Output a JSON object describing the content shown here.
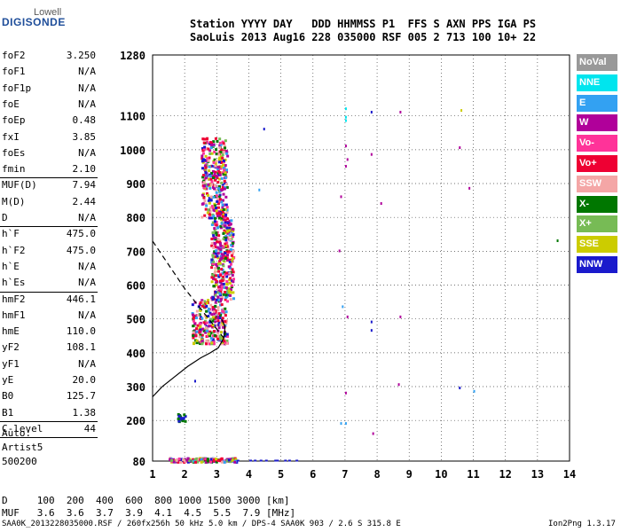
{
  "logo": {
    "top": "Lowell",
    "main": "DIGISONDE"
  },
  "header": {
    "line1": "Station YYYY DAY   DDD HHMMSS P1  FFS S AXN PPS IGA PS",
    "line2": "SaoLuis 2013 Aug16 228 035000 RSF 005 2 713 100 10+ 22"
  },
  "params": [
    {
      "name": "foF2",
      "value": "3.250"
    },
    {
      "name": "foF1",
      "value": "N/A"
    },
    {
      "name": "foF1p",
      "value": "N/A"
    },
    {
      "name": "foE",
      "value": "N/A"
    },
    {
      "name": "foEp",
      "value": "0.48"
    },
    {
      "name": "fxI",
      "value": "3.85"
    },
    {
      "name": "foEs",
      "value": "N/A"
    },
    {
      "name": "fmin",
      "value": "2.10"
    },
    {
      "name": "MUF(D)",
      "value": "7.94"
    },
    {
      "name": "M(D)",
      "value": "2.44"
    },
    {
      "name": "D",
      "value": "N/A"
    },
    {
      "name": "h`F",
      "value": "475.0"
    },
    {
      "name": "h`F2",
      "value": "475.0"
    },
    {
      "name": "h`E",
      "value": "N/A"
    },
    {
      "name": "h`Es",
      "value": "N/A"
    },
    {
      "name": "hmF2",
      "value": "446.1"
    },
    {
      "name": "hmF1",
      "value": "N/A"
    },
    {
      "name": "hmE",
      "value": "110.0"
    },
    {
      "name": "yF2",
      "value": "108.1"
    },
    {
      "name": "yF1",
      "value": "N/A"
    },
    {
      "name": "yE",
      "value": "20.0"
    },
    {
      "name": "B0",
      "value": "125.7"
    },
    {
      "name": "B1",
      "value": "1.38"
    },
    {
      "name": "C-level",
      "value": "44"
    }
  ],
  "auto": {
    "line1": "Auto:",
    "line2": "Artist5",
    "line3": "500200"
  },
  "distance_table": {
    "row1": "D     100  200  400  600  800 1000 1500 3000 [km]",
    "row2": "MUF   3.6  3.6  3.7  3.9  4.1  4.5  5.5  7.9 [MHz]"
  },
  "footer": {
    "left": "SAA0K_2013228035000.RSF / 260fx256h 50 kHz 5.0 km / DPS-4 SAA0K 903 / 2.6 S 315.8 E",
    "right": "Ion2Png 1.3.17"
  },
  "legend": [
    {
      "label": "NoVal",
      "color": "#999999"
    },
    {
      "label": "NNE",
      "color": "#00e5ee"
    },
    {
      "label": "E",
      "color": "#33a1f2"
    },
    {
      "label": "W",
      "color": "#b0009a"
    },
    {
      "label": "Vo-",
      "color": "#ff3399"
    },
    {
      "label": "Vo+",
      "color": "#ee0033"
    },
    {
      "label": "SSW",
      "color": "#f4a6a6"
    },
    {
      "label": "X-",
      "color": "#007700"
    },
    {
      "label": "X+",
      "color": "#77bb55"
    },
    {
      "label": "SSE",
      "color": "#cccc00"
    },
    {
      "label": "NNW",
      "color": "#1a1acc"
    }
  ],
  "chart_data": {
    "type": "scatter",
    "xlim": [
      1,
      14
    ],
    "ylim": [
      80,
      1280
    ],
    "x_ticks": [
      1,
      2,
      3,
      4,
      5,
      6,
      7,
      8,
      9,
      10,
      11,
      12,
      13,
      14
    ],
    "y_ticks": [
      80,
      200,
      300,
      400,
      500,
      600,
      700,
      800,
      900,
      1000,
      1100,
      1280
    ],
    "grid": true,
    "profile_line": {
      "x": [
        1.0,
        1.3,
        1.7,
        2.1,
        2.5,
        2.8,
        3.05,
        3.2,
        3.25,
        3.25,
        3.15
      ],
      "y": [
        270,
        300,
        330,
        360,
        385,
        400,
        415,
        440,
        460,
        480,
        500
      ]
    },
    "dashed_line": {
      "x": [
        1.0,
        1.5,
        2.0,
        2.5,
        3.0,
        3.25
      ],
      "y": [
        730,
        660,
        590,
        530,
        470,
        440
      ]
    },
    "main_cluster": {
      "x_range": [
        1.8,
        3.7
      ],
      "y_range": [
        430,
        1040
      ]
    },
    "low_echoes": {
      "x_range": [
        1.5,
        5.8
      ],
      "y_range": [
        80,
        90
      ]
    },
    "scattered_points": [
      {
        "x": 7.0,
        "y": 1090,
        "color": "#00e5ee"
      },
      {
        "x": 7.0,
        "y": 1100,
        "color": "#00e5ee"
      },
      {
        "x": 7.0,
        "y": 1125,
        "color": "#00e5ee"
      },
      {
        "x": 7.0,
        "y": 1015,
        "color": "#b0009a"
      },
      {
        "x": 7.05,
        "y": 975,
        "color": "#b0009a"
      },
      {
        "x": 7.0,
        "y": 955,
        "color": "#b0009a"
      },
      {
        "x": 6.85,
        "y": 865,
        "color": "#b0009a"
      },
      {
        "x": 6.8,
        "y": 705,
        "color": "#b0009a"
      },
      {
        "x": 6.9,
        "y": 540,
        "color": "#33a1f2"
      },
      {
        "x": 7.05,
        "y": 510,
        "color": "#b0009a"
      },
      {
        "x": 7.0,
        "y": 285,
        "color": "#b0009a"
      },
      {
        "x": 6.85,
        "y": 195,
        "color": "#33a1f2"
      },
      {
        "x": 7.0,
        "y": 195,
        "color": "#33a1f2"
      },
      {
        "x": 7.8,
        "y": 1115,
        "color": "#1a1acc"
      },
      {
        "x": 7.8,
        "y": 990,
        "color": "#b0009a"
      },
      {
        "x": 7.8,
        "y": 495,
        "color": "#1a1acc"
      },
      {
        "x": 7.8,
        "y": 470,
        "color": "#1a1acc"
      },
      {
        "x": 7.85,
        "y": 165,
        "color": "#b0009a"
      },
      {
        "x": 8.1,
        "y": 845,
        "color": "#b0009a"
      },
      {
        "x": 8.7,
        "y": 1115,
        "color": "#b0009a"
      },
      {
        "x": 8.7,
        "y": 510,
        "color": "#b0009a"
      },
      {
        "x": 8.65,
        "y": 310,
        "color": "#b0009a"
      },
      {
        "x": 10.6,
        "y": 1120,
        "color": "#cccc00"
      },
      {
        "x": 10.55,
        "y": 1010,
        "color": "#b0009a"
      },
      {
        "x": 10.55,
        "y": 300,
        "color": "#1a1acc"
      },
      {
        "x": 10.85,
        "y": 890,
        "color": "#b0009a"
      },
      {
        "x": 11.0,
        "y": 290,
        "color": "#33a1f2"
      },
      {
        "x": 13.6,
        "y": 735,
        "color": "#007700"
      },
      {
        "x": 4.45,
        "y": 1065,
        "color": "#1a1acc"
      },
      {
        "x": 4.3,
        "y": 885,
        "color": "#33a1f2"
      },
      {
        "x": 2.3,
        "y": 320,
        "color": "#1a1acc"
      }
    ]
  }
}
